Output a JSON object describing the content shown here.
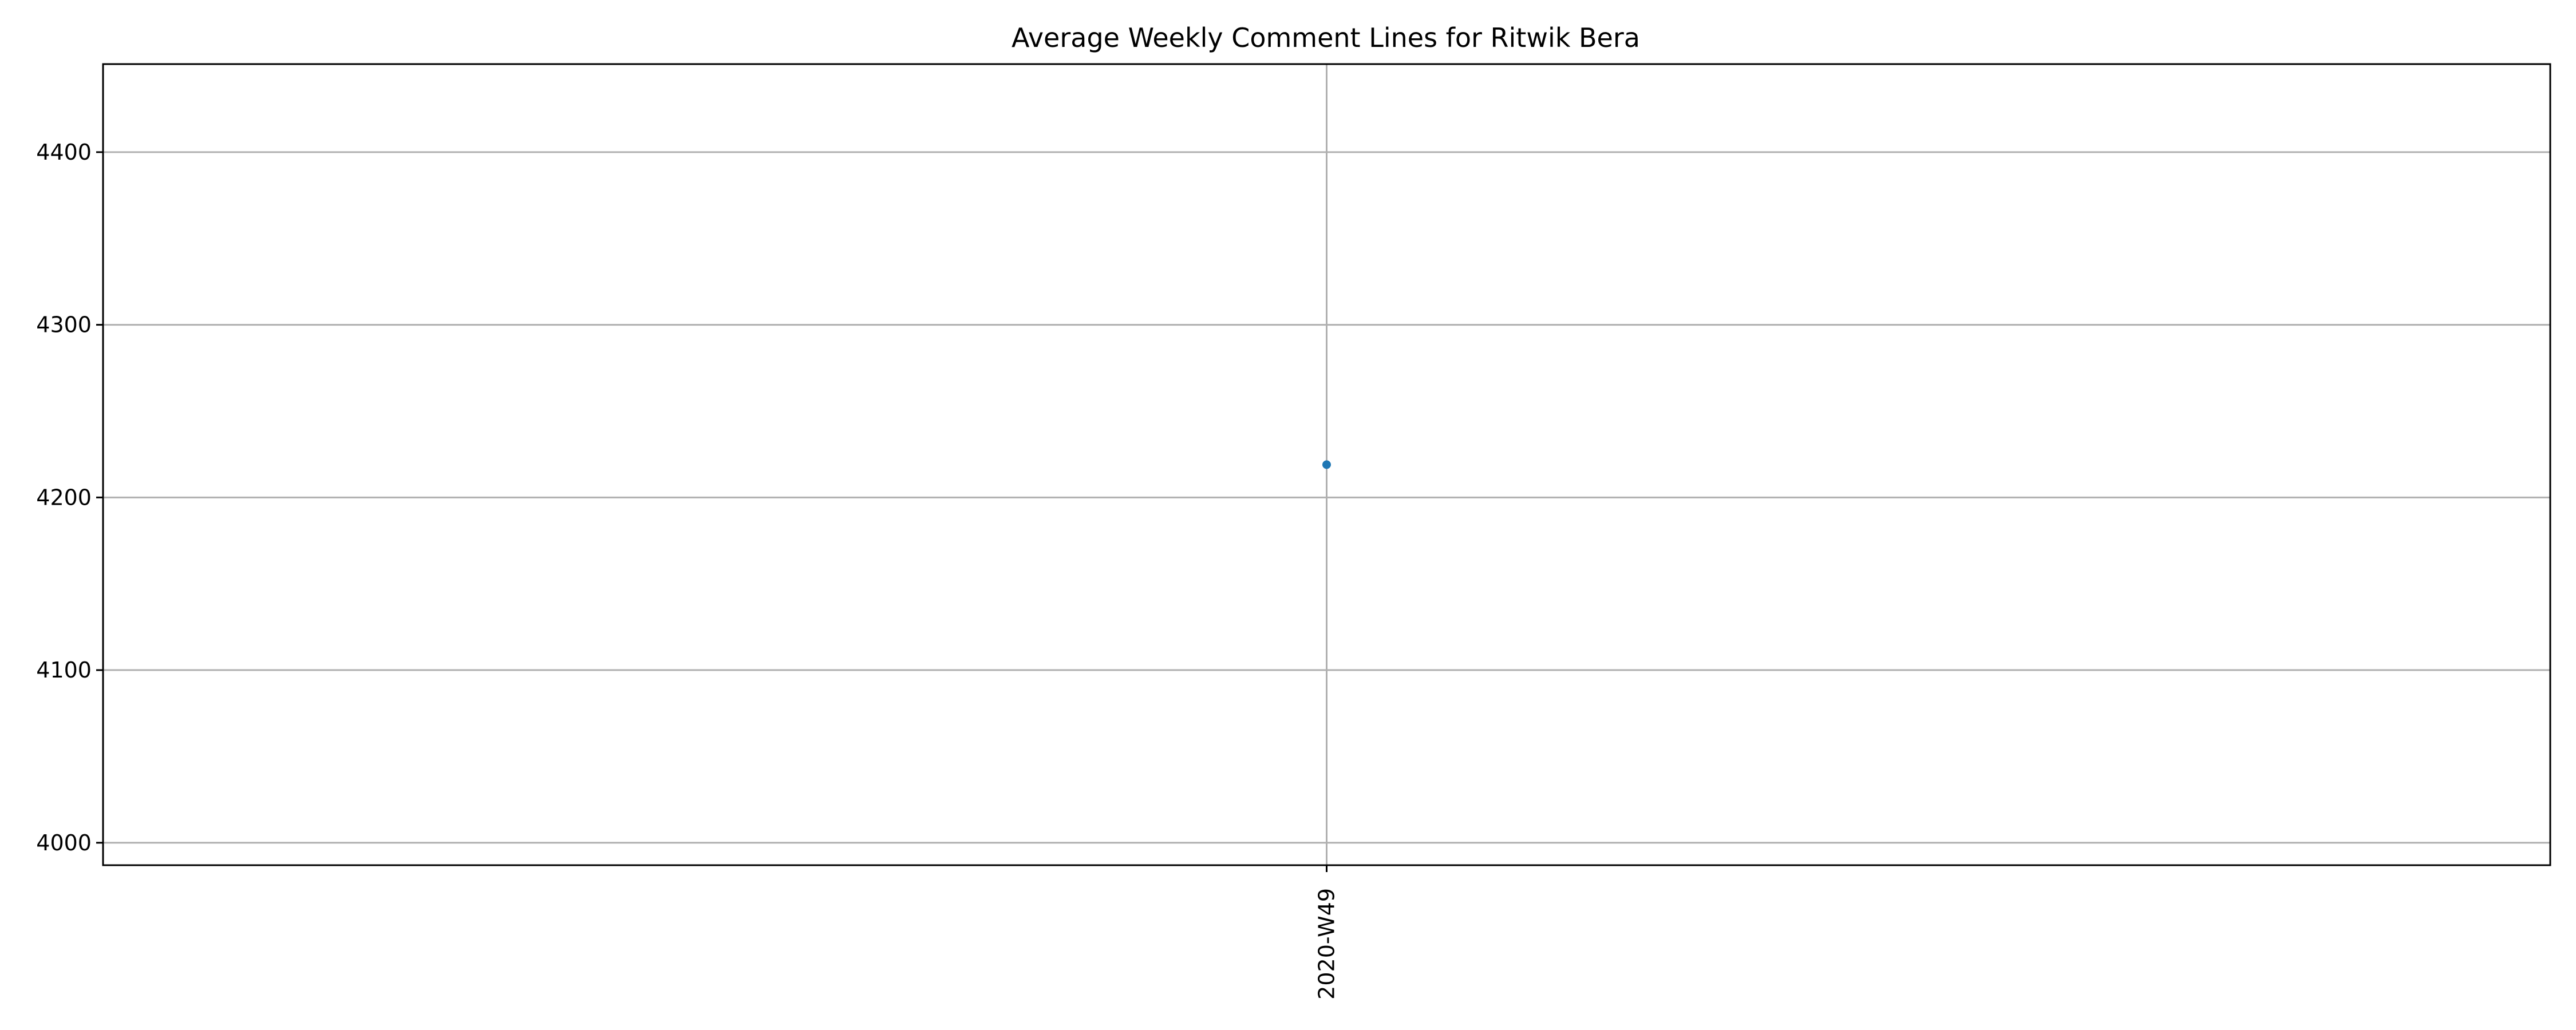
{
  "chart_data": {
    "type": "line",
    "title": "Average Weekly Comment Lines for Ritwik Bera",
    "xlabel": "",
    "ylabel": "",
    "categories": [
      "2020-W49"
    ],
    "series": [
      {
        "values": [
          4219
        ]
      }
    ],
    "ylim": [
      3987,
      4451
    ],
    "yticks": [
      4000,
      4100,
      4200,
      4300,
      4400
    ],
    "grid": true,
    "x_tick_rotation": "vertical",
    "colors": {
      "series": "#1f77b4",
      "grid": "#b0b0b0",
      "axes": "#000000"
    }
  }
}
